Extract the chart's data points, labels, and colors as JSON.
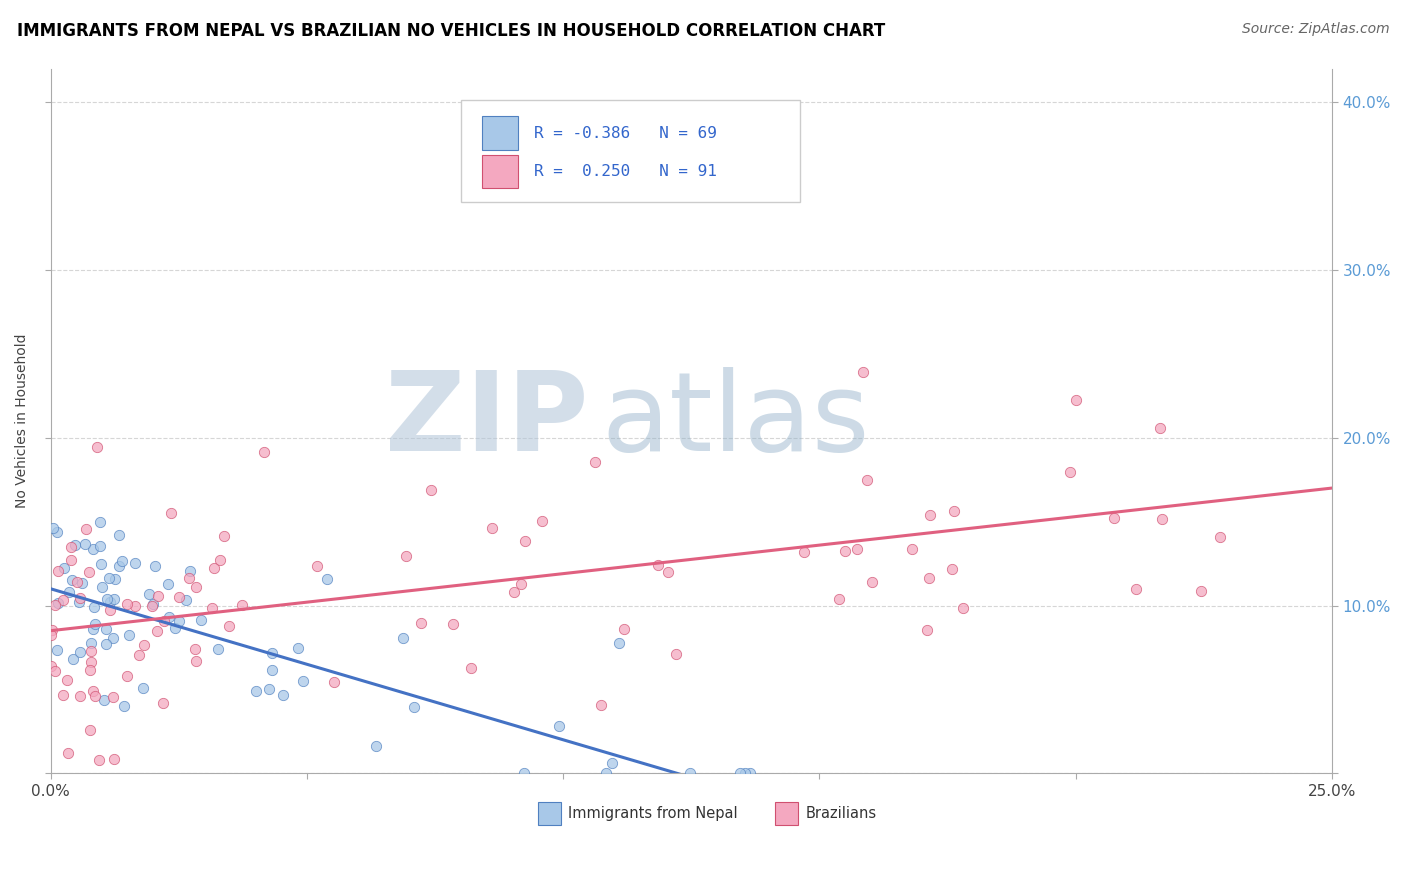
{
  "title": "IMMIGRANTS FROM NEPAL VS BRAZILIAN NO VEHICLES IN HOUSEHOLD CORRELATION CHART",
  "source": "Source: ZipAtlas.com",
  "ylabel_label": "No Vehicles in Household",
  "legend_label1": "Immigrants from Nepal",
  "legend_label2": "Brazilians",
  "legend_r1": "R = -0.386",
  "legend_n1": "N = 69",
  "legend_r2": "R =  0.250",
  "legend_n2": "N = 91",
  "color_nepal": "#a8c8e8",
  "color_brazil": "#f4a8c0",
  "color_nepal_line": "#4472c4",
  "color_brazil_line": "#e06080",
  "color_nepal_edge": "#5080c0",
  "color_brazil_edge": "#d05070",
  "watermark_zip": "#b8c8d8",
  "watermark_atlas": "#a0b8d0",
  "x_min": 0.0,
  "x_max": 0.25,
  "y_min": 0.0,
  "y_max": 0.42,
  "nepal_intercept": 0.11,
  "nepal_slope": -0.9,
  "brazil_intercept": 0.085,
  "brazil_slope": 0.34,
  "right_ytick_color": "#5b9bd5",
  "title_fontsize": 12,
  "source_fontsize": 10
}
